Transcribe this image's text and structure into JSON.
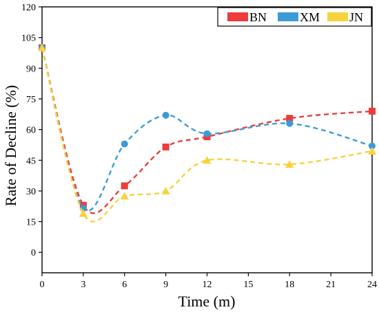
{
  "chart_data": {
    "type": "line",
    "title": "",
    "xlabel": "Time (m)",
    "ylabel": "Rate of Decline (%)",
    "xlim": [
      0,
      24
    ],
    "ylim": [
      -10,
      120
    ],
    "xticks": [
      0,
      3,
      6,
      9,
      12,
      15,
      18,
      21,
      24
    ],
    "yticks": [
      0,
      15,
      30,
      45,
      60,
      75,
      90,
      105,
      120
    ],
    "grid": false,
    "legend_position": "top-right",
    "series": [
      {
        "name": "BN",
        "color": "#ee3b3b",
        "marker": "square",
        "x": [
          0,
          3,
          6,
          9,
          12,
          18,
          24
        ],
        "y": [
          100,
          23,
          32.5,
          51.5,
          56.5,
          65.5,
          69
        ]
      },
      {
        "name": "XM",
        "color": "#3b9bd6",
        "marker": "circle",
        "x": [
          0,
          3,
          6,
          9,
          12,
          18,
          24
        ],
        "y": [
          100,
          21.5,
          53,
          67,
          58,
          63,
          52
        ]
      },
      {
        "name": "JN",
        "color": "#f7d23c",
        "marker": "triangle",
        "x": [
          0,
          3,
          6,
          9,
          12,
          18,
          24
        ],
        "y": [
          100,
          19,
          27.5,
          30,
          45,
          43,
          49.5
        ]
      }
    ]
  }
}
